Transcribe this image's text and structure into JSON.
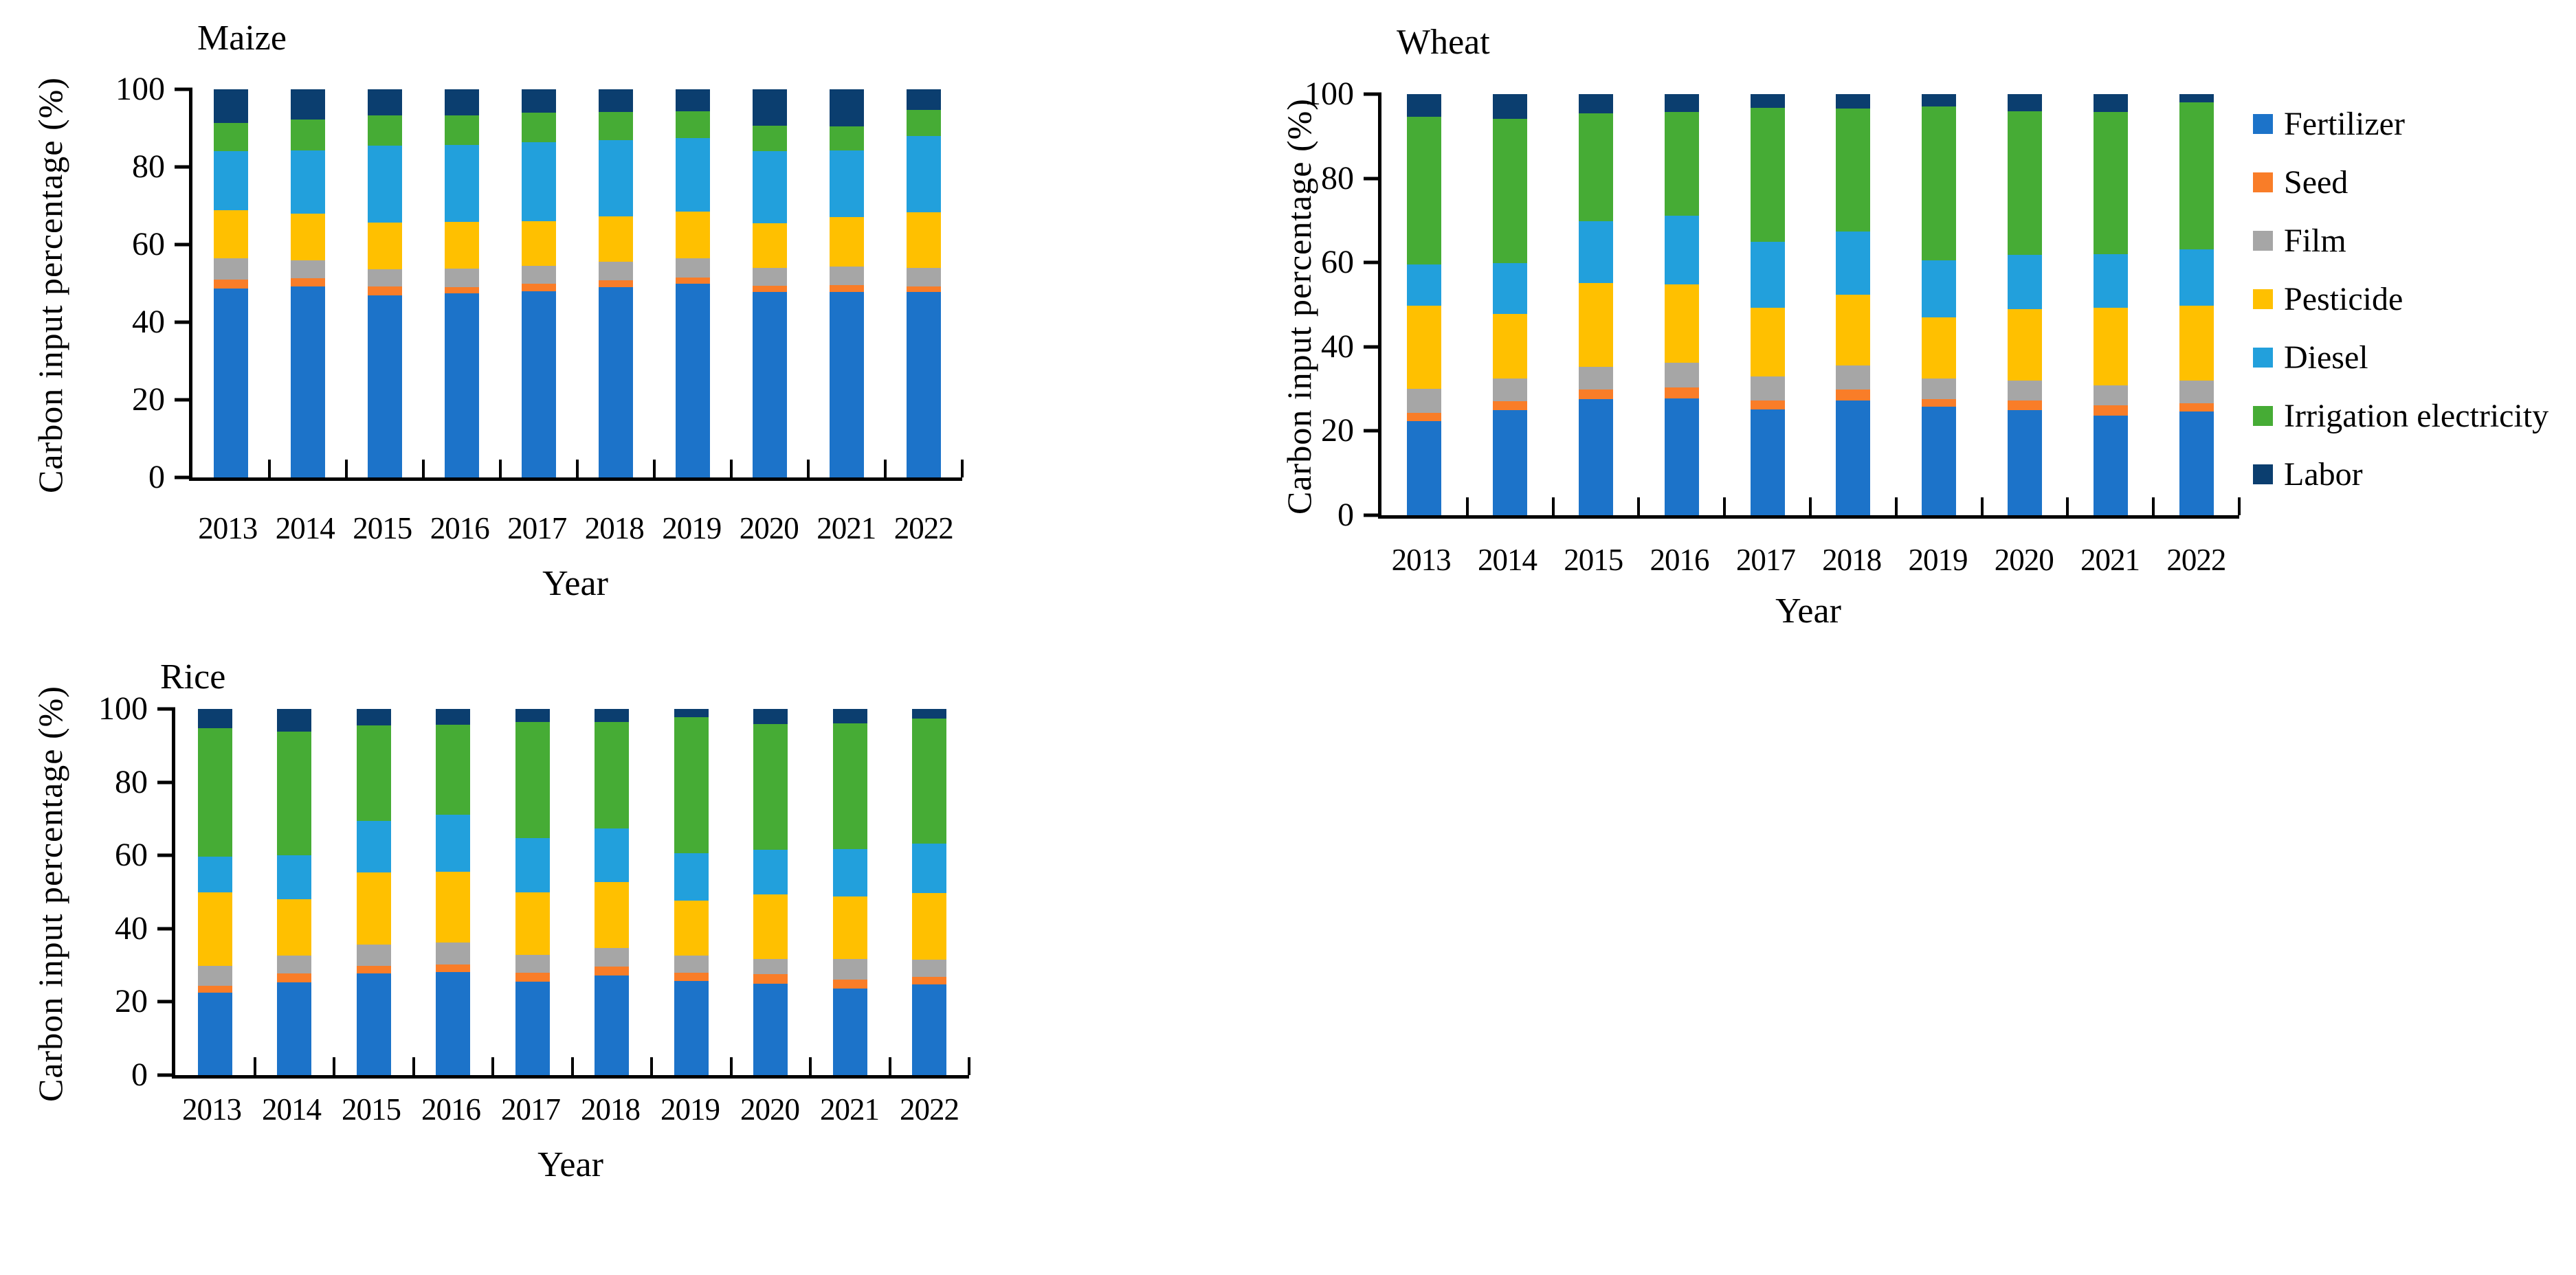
{
  "figure": {
    "background": "#ffffff",
    "axis_color": "#000000"
  },
  "legend": {
    "items": [
      {
        "label": "Fertilizer",
        "color": "#1C73C9"
      },
      {
        "label": "Seed",
        "color": "#F97D28"
      },
      {
        "label": "Film",
        "color": "#A6A6A6"
      },
      {
        "label": "Pesticide",
        "color": "#FFC000"
      },
      {
        "label": "Diesel",
        "color": "#22A0DC"
      },
      {
        "label": "Irrigation electricity",
        "color": "#46AC35"
      },
      {
        "label": "Labor",
        "color": "#0B3E6F"
      }
    ]
  },
  "chart_data": [
    {
      "id": "maize",
      "type": "bar",
      "stacked": true,
      "title": "Maize",
      "xlabel": "Year",
      "ylabel": "Carbon input percentage (%)",
      "ylim": [
        0,
        100
      ],
      "yticks": [
        0,
        20,
        40,
        60,
        80,
        100
      ],
      "grid": false,
      "categories": [
        "2013",
        "2014",
        "2015",
        "2016",
        "2017",
        "2018",
        "2019",
        "2020",
        "2021",
        "2022"
      ],
      "series": [
        {
          "name": "Fertilizer",
          "color": "#1C73C9",
          "values": [
            48.6,
            49.2,
            46.9,
            47.5,
            48.0,
            49.0,
            50.0,
            47.8,
            47.8,
            47.8
          ]
        },
        {
          "name": "Seed",
          "color": "#F97D28",
          "values": [
            2.4,
            2.1,
            2.3,
            1.5,
            2.0,
            1.8,
            1.5,
            1.5,
            1.8,
            1.4
          ]
        },
        {
          "name": "Film",
          "color": "#A6A6A6",
          "values": [
            5.5,
            4.6,
            4.4,
            4.8,
            4.5,
            4.7,
            5.0,
            4.7,
            4.7,
            4.8
          ]
        },
        {
          "name": "Pesticide",
          "color": "#FFC000",
          "values": [
            12.4,
            12.0,
            12.0,
            12.0,
            11.5,
            11.8,
            12.0,
            11.5,
            12.7,
            14.4
          ]
        },
        {
          "name": "Diesel",
          "color": "#22A0DC",
          "values": [
            15.1,
            16.4,
            19.9,
            19.9,
            20.3,
            19.7,
            19.0,
            18.6,
            17.2,
            19.5
          ]
        },
        {
          "name": "Irrigation electricity",
          "color": "#46AC35",
          "values": [
            7.4,
            8.0,
            7.7,
            7.6,
            7.7,
            7.2,
            6.8,
            6.5,
            6.3,
            6.8
          ]
        },
        {
          "name": "Labor",
          "color": "#0B3E6F",
          "values": [
            8.6,
            7.7,
            6.8,
            6.7,
            6.0,
            5.8,
            5.7,
            9.4,
            9.5,
            5.3
          ]
        }
      ]
    },
    {
      "id": "wheat",
      "type": "bar",
      "stacked": true,
      "title": "Wheat",
      "xlabel": "Year",
      "ylabel": "Carbon input percentage (%)",
      "ylim": [
        0,
        100
      ],
      "yticks": [
        0,
        20,
        40,
        60,
        80,
        100
      ],
      "grid": false,
      "categories": [
        "2013",
        "2014",
        "2015",
        "2016",
        "2017",
        "2018",
        "2019",
        "2020",
        "2021",
        "2022"
      ],
      "series": [
        {
          "name": "Fertilizer",
          "color": "#1C73C9",
          "values": [
            22.4,
            25.0,
            27.5,
            27.8,
            25.1,
            27.2,
            25.7,
            24.9,
            23.7,
            24.7
          ]
        },
        {
          "name": "Seed",
          "color": "#F97D28",
          "values": [
            1.9,
            2.1,
            2.3,
            2.6,
            2.1,
            2.6,
            1.9,
            2.4,
            2.4,
            1.9
          ]
        },
        {
          "name": "Film",
          "color": "#A6A6A6",
          "values": [
            5.7,
            5.3,
            5.5,
            5.8,
            5.7,
            5.7,
            4.8,
            4.6,
            4.7,
            5.3
          ]
        },
        {
          "name": "Pesticide",
          "color": "#FFC000",
          "values": [
            19.8,
            15.4,
            19.8,
            18.6,
            16.4,
            16.9,
            14.6,
            17.0,
            18.4,
            17.8
          ]
        },
        {
          "name": "Diesel",
          "color": "#22A0DC",
          "values": [
            9.7,
            12.1,
            14.7,
            16.4,
            15.6,
            14.9,
            13.5,
            12.9,
            12.8,
            13.4
          ]
        },
        {
          "name": "Irrigation electricity",
          "color": "#46AC35",
          "values": [
            35.2,
            34.3,
            25.7,
            24.5,
            31.9,
            29.3,
            36.5,
            34.2,
            33.8,
            34.9
          ]
        },
        {
          "name": "Labor",
          "color": "#0B3E6F",
          "values": [
            5.3,
            5.8,
            4.5,
            4.3,
            3.2,
            3.4,
            3.0,
            4.0,
            4.2,
            2.0
          ]
        }
      ]
    },
    {
      "id": "rice",
      "type": "bar",
      "stacked": true,
      "title": "Rice",
      "xlabel": "Year",
      "ylabel": "Carbon input percentage (%)",
      "ylim": [
        0,
        100
      ],
      "yticks": [
        0,
        20,
        40,
        60,
        80,
        100
      ],
      "grid": false,
      "categories": [
        "2013",
        "2014",
        "2015",
        "2016",
        "2017",
        "2018",
        "2019",
        "2020",
        "2021",
        "2022"
      ],
      "series": [
        {
          "name": "Fertilizer",
          "color": "#1C73C9",
          "values": [
            22.5,
            25.3,
            27.7,
            28.1,
            25.5,
            27.2,
            25.8,
            25.0,
            23.7,
            24.7
          ]
        },
        {
          "name": "Seed",
          "color": "#F97D28",
          "values": [
            1.9,
            2.4,
            2.1,
            2.2,
            2.4,
            2.4,
            2.1,
            2.5,
            2.3,
            2.2
          ]
        },
        {
          "name": "Film",
          "color": "#A6A6A6",
          "values": [
            5.4,
            4.9,
            5.9,
            5.9,
            4.9,
            5.2,
            4.7,
            4.3,
            5.7,
            4.6
          ]
        },
        {
          "name": "Pesticide",
          "color": "#FFC000",
          "values": [
            20.1,
            15.5,
            19.6,
            19.3,
            17.1,
            17.9,
            15.0,
            17.5,
            17.1,
            18.2
          ]
        },
        {
          "name": "Diesel",
          "color": "#22A0DC",
          "values": [
            9.7,
            12.0,
            14.2,
            15.6,
            14.9,
            14.6,
            13.1,
            12.3,
            12.9,
            13.6
          ]
        },
        {
          "name": "Irrigation electricity",
          "color": "#46AC35",
          "values": [
            35.2,
            33.8,
            26.1,
            24.6,
            31.7,
            29.1,
            37.0,
            34.2,
            34.3,
            34.1
          ]
        },
        {
          "name": "Labor",
          "color": "#0B3E6F",
          "values": [
            5.2,
            6.1,
            4.4,
            4.3,
            3.5,
            3.6,
            2.3,
            4.2,
            4.0,
            2.6
          ]
        }
      ]
    }
  ]
}
